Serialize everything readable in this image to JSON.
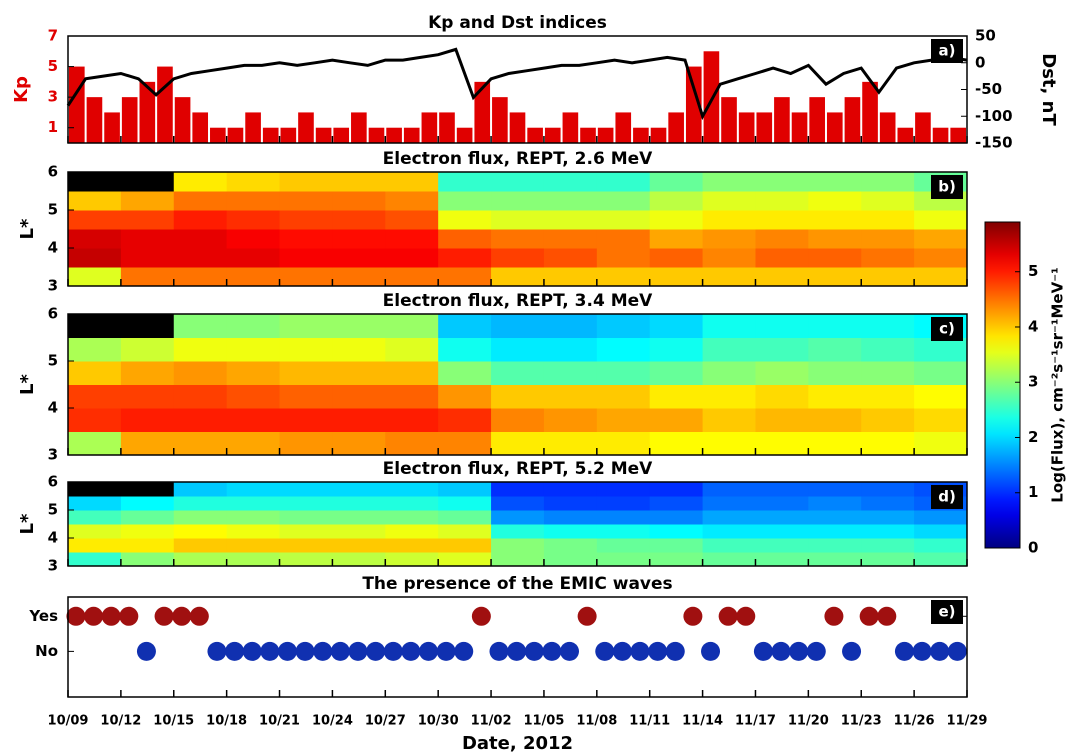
{
  "chart_data": [
    {
      "type": "kp_dst",
      "title": "Kp and Dst indices",
      "panel_label": "a)",
      "xlim": [
        "2012-10-09",
        "2012-11-29"
      ],
      "ylabel": "Kp",
      "ylim": [
        0,
        7
      ],
      "yticks": [
        1,
        3,
        5,
        7
      ],
      "y2label": "Dst, nT",
      "y2lim": [
        -150,
        50
      ],
      "y2ticks": [
        50,
        0,
        -50,
        -100,
        -150
      ],
      "series": [
        {
          "type": "bar",
          "color": "#e00000",
          "x": [
            "2012-10-09",
            "2012-10-10",
            "2012-10-11",
            "2012-10-12",
            "2012-10-13",
            "2012-10-14",
            "2012-10-15",
            "2012-10-16",
            "2012-10-17",
            "2012-10-18",
            "2012-10-19",
            "2012-10-20",
            "2012-10-21",
            "2012-10-22",
            "2012-10-23",
            "2012-10-24",
            "2012-10-25",
            "2012-10-26",
            "2012-10-27",
            "2012-10-28",
            "2012-10-29",
            "2012-10-30",
            "2012-10-31",
            "2012-11-01",
            "2012-11-02",
            "2012-11-03",
            "2012-11-04",
            "2012-11-05",
            "2012-11-06",
            "2012-11-07",
            "2012-11-08",
            "2012-11-09",
            "2012-11-10",
            "2012-11-11",
            "2012-11-12",
            "2012-11-13",
            "2012-11-14",
            "2012-11-15",
            "2012-11-16",
            "2012-11-17",
            "2012-11-18",
            "2012-11-19",
            "2012-11-20",
            "2012-11-21",
            "2012-11-22",
            "2012-11-23",
            "2012-11-24",
            "2012-11-25",
            "2012-11-26",
            "2012-11-27",
            "2012-11-28"
          ],
          "values": [
            5,
            3,
            2,
            3,
            4,
            5,
            3,
            2,
            1,
            1,
            2,
            1,
            1,
            2,
            1,
            1,
            2,
            1,
            1,
            1,
            2,
            2,
            1,
            4,
            3,
            2,
            1,
            1,
            2,
            1,
            1,
            2,
            1,
            1,
            2,
            5,
            6,
            3,
            2,
            2,
            3,
            2,
            3,
            2,
            3,
            4,
            2,
            1,
            2,
            1,
            1
          ]
        },
        {
          "type": "line",
          "axis": "y2",
          "color": "#000000",
          "x": [
            "2012-10-09",
            "2012-10-10",
            "2012-10-11",
            "2012-10-12",
            "2012-10-13",
            "2012-10-14",
            "2012-10-15",
            "2012-10-16",
            "2012-10-17",
            "2012-10-18",
            "2012-10-19",
            "2012-10-20",
            "2012-10-21",
            "2012-10-22",
            "2012-10-23",
            "2012-10-24",
            "2012-10-25",
            "2012-10-26",
            "2012-10-27",
            "2012-10-28",
            "2012-10-29",
            "2012-10-30",
            "2012-10-31",
            "2012-11-01",
            "2012-11-02",
            "2012-11-03",
            "2012-11-04",
            "2012-11-05",
            "2012-11-06",
            "2012-11-07",
            "2012-11-08",
            "2012-11-09",
            "2012-11-10",
            "2012-11-11",
            "2012-11-12",
            "2012-11-13",
            "2012-11-14",
            "2012-11-15",
            "2012-11-16",
            "2012-11-17",
            "2012-11-18",
            "2012-11-19",
            "2012-11-20",
            "2012-11-21",
            "2012-11-22",
            "2012-11-23",
            "2012-11-24",
            "2012-11-25",
            "2012-11-26",
            "2012-11-27",
            "2012-11-28",
            "2012-11-29"
          ],
          "values": [
            -80,
            -30,
            -25,
            -20,
            -30,
            -60,
            -30,
            -20,
            -15,
            -10,
            -5,
            -5,
            0,
            -5,
            0,
            5,
            0,
            -5,
            5,
            5,
            10,
            15,
            25,
            -65,
            -30,
            -20,
            -15,
            -10,
            -5,
            -5,
            0,
            5,
            0,
            5,
            10,
            5,
            -100,
            -40,
            -30,
            -20,
            -10,
            -20,
            -5,
            -40,
            -20,
            -10,
            -55,
            -10,
            0,
            5,
            10,
            5
          ]
        }
      ]
    },
    {
      "type": "heatmap",
      "title": "Electron flux, REPT, 2.6 MeV",
      "panel_label": "b)",
      "xlim": [
        "2012-10-09",
        "2012-11-29"
      ],
      "ylabel": "L*",
      "ylim": [
        3,
        6
      ],
      "yticks": [
        3,
        4,
        5,
        6
      ],
      "x_edges": [
        "2012-10-09",
        "2012-10-12",
        "2012-10-15",
        "2012-10-18",
        "2012-10-21",
        "2012-10-24",
        "2012-10-27",
        "2012-10-30",
        "2012-11-02",
        "2012-11-05",
        "2012-11-08",
        "2012-11-11",
        "2012-11-14",
        "2012-11-17",
        "2012-11-20",
        "2012-11-23",
        "2012-11-26",
        "2012-11-29"
      ],
      "y_edges": [
        3,
        3.5,
        4,
        4.5,
        5,
        5.5,
        6
      ],
      "z": [
        [
          3.5,
          4.5,
          4.5,
          4.5,
          4.5,
          4.5,
          4.5,
          4.5,
          4,
          4,
          4,
          4,
          4,
          4,
          4,
          4,
          4
        ],
        [
          5.5,
          5.3,
          5.3,
          5.3,
          5.2,
          5.2,
          5.2,
          5,
          4.8,
          4.7,
          4.5,
          4.6,
          4.4,
          4.6,
          4.6,
          4.5,
          4.4
        ],
        [
          5.4,
          5.3,
          5.3,
          5.2,
          5.1,
          5.1,
          5.1,
          4.6,
          4.5,
          4.5,
          4.5,
          4.2,
          4.3,
          4.4,
          4.3,
          4.3,
          4.2
        ],
        [
          4.8,
          4.8,
          5.0,
          4.9,
          4.8,
          4.8,
          4.7,
          3.6,
          3.5,
          3.5,
          3.5,
          3.6,
          3.8,
          3.8,
          3.8,
          3.8,
          3.6
        ],
        [
          4.0,
          4.2,
          4.5,
          4.5,
          4.5,
          4.5,
          4.4,
          3.0,
          3.0,
          3.0,
          3.0,
          3.3,
          3.5,
          3.5,
          3.6,
          3.5,
          3.3
        ],
        [
          null,
          null,
          3.8,
          3.9,
          4.0,
          4.0,
          4.0,
          2.5,
          2.5,
          2.5,
          2.5,
          2.8,
          3.0,
          3.0,
          3.0,
          3.0,
          2.8
        ]
      ]
    },
    {
      "type": "heatmap",
      "title": "Electron flux, REPT, 3.4 MeV",
      "panel_label": "c)",
      "xlim": [
        "2012-10-09",
        "2012-11-29"
      ],
      "ylabel": "L*",
      "ylim": [
        3,
        6
      ],
      "yticks": [
        3,
        4,
        5,
        6
      ],
      "x_edges": [
        "2012-10-09",
        "2012-10-12",
        "2012-10-15",
        "2012-10-18",
        "2012-10-21",
        "2012-10-24",
        "2012-10-27",
        "2012-10-30",
        "2012-11-02",
        "2012-11-05",
        "2012-11-08",
        "2012-11-11",
        "2012-11-14",
        "2012-11-17",
        "2012-11-20",
        "2012-11-23",
        "2012-11-26",
        "2012-11-29"
      ],
      "y_edges": [
        3,
        3.5,
        4,
        4.5,
        5,
        5.5,
        6
      ],
      "z": [
        [
          3.2,
          4.2,
          4.2,
          4.2,
          4.3,
          4.3,
          4.4,
          4.4,
          3.8,
          3.8,
          3.8,
          3.7,
          3.7,
          3.7,
          3.7,
          3.7,
          3.6
        ],
        [
          4.9,
          5.0,
          5.0,
          5.0,
          5.0,
          5.0,
          5.0,
          4.9,
          4.4,
          4.3,
          4.2,
          4.2,
          4.0,
          4.1,
          4.1,
          4.0,
          3.9
        ],
        [
          4.8,
          4.8,
          4.8,
          4.7,
          4.6,
          4.6,
          4.6,
          4.3,
          4.0,
          4.0,
          4.0,
          3.8,
          3.8,
          3.9,
          3.8,
          3.8,
          3.7
        ],
        [
          4.0,
          4.2,
          4.3,
          4.2,
          4.1,
          4.1,
          4.1,
          3.0,
          2.7,
          2.7,
          2.7,
          2.8,
          3.0,
          3.1,
          3.0,
          3.0,
          2.9
        ],
        [
          3.2,
          3.4,
          3.6,
          3.6,
          3.6,
          3.6,
          3.5,
          2.3,
          2.1,
          2.1,
          2.2,
          2.3,
          2.6,
          2.6,
          2.7,
          2.6,
          2.5
        ],
        [
          null,
          null,
          3.0,
          3.0,
          3.1,
          3.1,
          3.1,
          1.9,
          1.8,
          1.8,
          1.9,
          2.0,
          2.3,
          2.3,
          2.3,
          2.3,
          2.2
        ]
      ]
    },
    {
      "type": "heatmap",
      "title": "Electron flux, REPT, 5.2 MeV",
      "panel_label": "d)",
      "xlim": [
        "2012-10-09",
        "2012-11-29"
      ],
      "ylabel": "L*",
      "ylim": [
        3,
        6
      ],
      "yticks": [
        3,
        4,
        5,
        6
      ],
      "x_edges": [
        "2012-10-09",
        "2012-10-12",
        "2012-10-15",
        "2012-10-18",
        "2012-10-21",
        "2012-10-24",
        "2012-10-27",
        "2012-10-30",
        "2012-11-02",
        "2012-11-05",
        "2012-11-08",
        "2012-11-11",
        "2012-11-14",
        "2012-11-17",
        "2012-11-20",
        "2012-11-23",
        "2012-11-26",
        "2012-11-29"
      ],
      "y_edges": [
        3,
        3.5,
        4,
        4.5,
        5,
        5.5,
        6
      ],
      "z": [
        [
          2.5,
          3.0,
          3.2,
          3.2,
          3.3,
          3.3,
          3.4,
          3.5,
          3.0,
          2.9,
          2.9,
          2.9,
          2.8,
          2.8,
          2.8,
          2.8,
          2.7
        ],
        [
          3.8,
          3.8,
          4.0,
          4.0,
          4.0,
          4.0,
          4.0,
          4.0,
          3.0,
          2.9,
          2.8,
          2.8,
          2.6,
          2.6,
          2.6,
          2.6,
          2.5
        ],
        [
          3.5,
          3.6,
          3.7,
          3.6,
          3.5,
          3.5,
          3.6,
          3.5,
          2.4,
          2.3,
          2.3,
          2.2,
          2.1,
          2.1,
          2.1,
          2.1,
          2.0
        ],
        [
          2.6,
          2.8,
          3.0,
          3.0,
          2.9,
          2.9,
          2.9,
          2.8,
          1.6,
          1.5,
          1.5,
          1.5,
          1.7,
          1.7,
          1.7,
          1.7,
          1.6
        ],
        [
          2.0,
          2.2,
          2.4,
          2.4,
          2.4,
          2.4,
          2.4,
          2.3,
          1.2,
          1.1,
          1.1,
          1.2,
          1.4,
          1.4,
          1.5,
          1.4,
          1.3
        ],
        [
          null,
          null,
          1.9,
          2.0,
          2.0,
          2.0,
          2.0,
          1.9,
          1.0,
          1.0,
          1.0,
          1.0,
          1.3,
          1.3,
          1.3,
          1.3,
          1.2
        ]
      ]
    },
    {
      "type": "category_scatter",
      "title": "The presence of the EMIC waves",
      "panel_label": "e)",
      "xlim": [
        "2012-10-09",
        "2012-11-29"
      ],
      "ycategories": [
        "Yes",
        "No"
      ],
      "colors": {
        "Yes": "#a01010",
        "No": "#1030b0"
      },
      "x": [
        "2012-10-09",
        "2012-10-10",
        "2012-10-11",
        "2012-10-12",
        "2012-10-13",
        "2012-10-14",
        "2012-10-15",
        "2012-10-16",
        "2012-10-17",
        "2012-10-18",
        "2012-10-19",
        "2012-10-20",
        "2012-10-21",
        "2012-10-22",
        "2012-10-23",
        "2012-10-24",
        "2012-10-25",
        "2012-10-26",
        "2012-10-27",
        "2012-10-28",
        "2012-10-29",
        "2012-10-30",
        "2012-10-31",
        "2012-11-01",
        "2012-11-02",
        "2012-11-03",
        "2012-11-04",
        "2012-11-05",
        "2012-11-06",
        "2012-11-07",
        "2012-11-08",
        "2012-11-09",
        "2012-11-10",
        "2012-11-11",
        "2012-11-12",
        "2012-11-13",
        "2012-11-14",
        "2012-11-15",
        "2012-11-16",
        "2012-11-17",
        "2012-11-18",
        "2012-11-19",
        "2012-11-20",
        "2012-11-21",
        "2012-11-22",
        "2012-11-23",
        "2012-11-24",
        "2012-11-25",
        "2012-11-26",
        "2012-11-27",
        "2012-11-28"
      ],
      "values": [
        "Yes",
        "Yes",
        "Yes",
        "Yes",
        "No",
        "Yes",
        "Yes",
        "Yes",
        "No",
        "No",
        "No",
        "No",
        "No",
        "No",
        "No",
        "No",
        "No",
        "No",
        "No",
        "No",
        "No",
        "No",
        "No",
        "Yes",
        "No",
        "No",
        "No",
        "No",
        "No",
        "Yes",
        "No",
        "No",
        "No",
        "No",
        "No",
        "Yes",
        "No",
        "Yes",
        "Yes",
        "No",
        "No",
        "No",
        "No",
        "Yes",
        "No",
        "Yes",
        "Yes",
        "No",
        "No",
        "No",
        "No"
      ],
      "xticks": [
        {
          "value": "2012-10-09",
          "label": "10/09"
        },
        {
          "value": "2012-10-12",
          "label": "10/12"
        },
        {
          "value": "2012-10-15",
          "label": "10/15"
        },
        {
          "value": "2012-10-18",
          "label": "10/18"
        },
        {
          "value": "2012-10-21",
          "label": "10/21"
        },
        {
          "value": "2012-10-24",
          "label": "10/24"
        },
        {
          "value": "2012-10-27",
          "label": "10/27"
        },
        {
          "value": "2012-10-30",
          "label": "10/30"
        },
        {
          "value": "2012-11-02",
          "label": "11/02"
        },
        {
          "value": "2012-11-05",
          "label": "11/05"
        },
        {
          "value": "2012-11-08",
          "label": "11/08"
        },
        {
          "value": "2012-11-11",
          "label": "11/11"
        },
        {
          "value": "2012-11-14",
          "label": "11/14"
        },
        {
          "value": "2012-11-17",
          "label": "11/17"
        },
        {
          "value": "2012-11-20",
          "label": "11/20"
        },
        {
          "value": "2012-11-23",
          "label": "11/23"
        },
        {
          "value": "2012-11-26",
          "label": "11/26"
        },
        {
          "value": "2012-11-29",
          "label": "11/29"
        }
      ],
      "xlabel": "Date, 2012"
    }
  ],
  "colorbar": {
    "label": "Log(Flux), cm⁻²s⁻¹sr⁻¹MeV⁻¹",
    "zlim": [
      0,
      5.9
    ],
    "zticks": [
      0,
      1,
      2,
      3,
      4,
      5
    ],
    "colormap": "jet"
  }
}
